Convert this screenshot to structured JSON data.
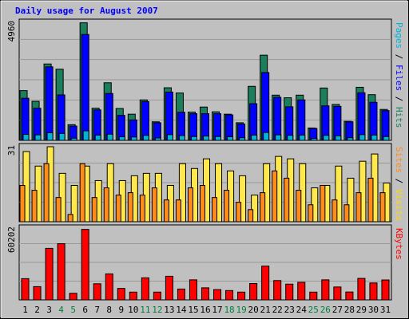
{
  "chart_data": {
    "type": "bar",
    "title": "Daily usage for August 2007",
    "categories": [
      "1",
      "2",
      "3",
      "4",
      "5",
      "6",
      "7",
      "8",
      "9",
      "10",
      "11",
      "12",
      "13",
      "14",
      "15",
      "16",
      "17",
      "18",
      "19",
      "20",
      "21",
      "22",
      "23",
      "24",
      "25",
      "26",
      "27",
      "28",
      "29",
      "30",
      "31"
    ],
    "weekend_days": [
      "4",
      "5",
      "11",
      "12",
      "18",
      "19",
      "25",
      "26"
    ],
    "colors": {
      "title": "#0000ff",
      "weekday_label": "#000000",
      "weekend_label": "#007f3f",
      "hits": "#1a7f5a",
      "files": "#0000ff",
      "sites": "#ffe84d",
      "visits": "#ff8c1a",
      "kbytes": "#ff0000",
      "grid": "#999999"
    },
    "panels": [
      {
        "id": "pages-files-hits",
        "ymax_label": "4960",
        "ymax": 4960,
        "legend": [
          {
            "text": "Pages",
            "color": "#00b4d8"
          },
          {
            "text": " / ",
            "color": "#000000"
          },
          {
            "text": "Files",
            "color": "#0000ff"
          },
          {
            "text": " / ",
            "color": "#000000"
          },
          {
            "text": "Hits",
            "color": "#1a7f5a"
          }
        ],
        "series": [
          {
            "name": "Hits",
            "values": [
              2090,
              1640,
              3210,
              2990,
              660,
              4940,
              1350,
              2420,
              1340,
              1100,
              1700,
              780,
              2210,
              1990,
              1190,
              1400,
              1200,
              1100,
              740,
              2270,
              3580,
              1900,
              1790,
              1900,
              520,
              2200,
              1510,
              800,
              2230,
              1920,
              1300
            ]
          },
          {
            "name": "Files",
            "values": [
              1770,
              1350,
              3090,
              1910,
              600,
              4450,
              1280,
              1970,
              1050,
              860,
              1630,
              740,
              2030,
              1180,
              1120,
              1120,
              1120,
              1070,
              690,
              1540,
              2850,
              1810,
              1410,
              1700,
              500,
              1450,
              1430,
              780,
              2000,
              1600,
              1250
            ]
          },
          {
            "name": "Pages",
            "values": [
              250,
              230,
              320,
              290,
              90,
              400,
              220,
              260,
              150,
              140,
              210,
              100,
              240,
              200,
              160,
              180,
              160,
              150,
              110,
              220,
              330,
              230,
              210,
              220,
              80,
              210,
              190,
              110,
              240,
              220,
              160
            ]
          }
        ]
      },
      {
        "id": "sites-visits",
        "ymax_label": "31",
        "ymax": 31,
        "legend": [
          {
            "text": "Sites",
            "color": "#ff8c1a"
          },
          {
            "text": " / ",
            "color": "#000000"
          },
          {
            "text": "Visits",
            "color": "#ffd700"
          }
        ],
        "series": [
          {
            "name": "Visits",
            "values": [
              29,
              23,
              31,
              20,
              15,
              23,
              17,
              24,
              17,
              19,
              20,
              20,
              15,
              24,
              22,
              26,
              24,
              21,
              19,
              11,
              24,
              27,
              26,
              24,
              14,
              15,
              23,
              18,
              25,
              28,
              16
            ]
          },
          {
            "name": "Sites",
            "values": [
              15,
              13,
              24,
              10,
              3,
              24,
              10,
              14,
              11,
              12,
              11,
              14,
              9,
              9,
              14,
              15,
              10,
              13,
              8,
              5,
              12,
              21,
              18,
              13,
              7,
              15,
              9,
              7,
              12,
              18,
              12
            ]
          }
        ]
      },
      {
        "id": "kbytes",
        "ymax_label": "60202",
        "ymax": 60202,
        "legend": [
          {
            "text": "KBytes",
            "color": "#ff0000"
          }
        ],
        "series": [
          {
            "name": "KBytes",
            "values": [
              17800,
              11100,
              43200,
              47100,
              5500,
              59100,
              13500,
              21800,
              9600,
              6500,
              18500,
              6500,
              19800,
              9100,
              16800,
              10100,
              8600,
              7800,
              6500,
              13700,
              28300,
              16200,
              13200,
              14700,
              6500,
              16800,
              10800,
              6600,
              18000,
              14200,
              16700
            ]
          }
        ]
      }
    ]
  }
}
